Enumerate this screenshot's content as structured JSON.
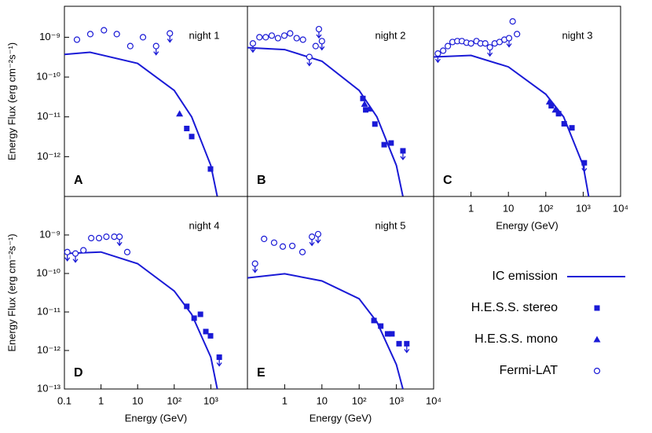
{
  "chart_data": [
    {
      "type": "scatter",
      "title": "night 1",
      "label": "A",
      "ylabel": "Energy Flux (erg cm⁻²s⁻¹)",
      "xlog": true,
      "ylog": true,
      "xlim": [
        0.1,
        10000
      ],
      "ylim": [
        1e-13,
        6e-09
      ],
      "yticks": [
        {
          "value": 1e-09,
          "label": "10⁻⁹"
        },
        {
          "value": 1e-10,
          "label": "10⁻¹⁰"
        },
        {
          "value": 1e-11,
          "label": "10⁻¹¹"
        },
        {
          "value": 1e-12,
          "label": "10⁻¹²"
        }
      ],
      "series": [
        {
          "name": "IC emission",
          "marker": "line",
          "color": "#1a1ad6",
          "x": [
            0.1,
            0.5,
            10,
            100,
            300,
            1000,
            1500
          ],
          "values": [
            3.7e-10,
            4.2e-10,
            2.2e-10,
            4.6e-11,
            1e-11,
            6e-13,
            1e-13
          ]
        },
        {
          "name": "H.E.S.S. stereo",
          "marker": "square",
          "color": "#1a1ad6",
          "x": [
            220,
            300,
            980
          ],
          "values": [
            5.1e-12,
            3.2e-12,
            4.9e-13
          ],
          "upper_limit": [
            false,
            false,
            false
          ]
        },
        {
          "name": "H.E.S.S. mono",
          "marker": "triangle",
          "color": "#1a1ad6",
          "x": [
            140
          ],
          "values": [
            1.2e-11
          ],
          "upper_limit": [
            false
          ]
        },
        {
          "name": "Fermi-LAT",
          "marker": "circle",
          "color": "#1a1ad6",
          "x": [
            0.22,
            0.51,
            1.2,
            2.7,
            6.3,
            14,
            32,
            76
          ],
          "values": [
            8.7e-10,
            1.2e-09,
            1.5e-09,
            1.2e-09,
            6e-10,
            1e-09,
            6e-10,
            1.25e-09
          ],
          "upper_limit": [
            false,
            false,
            false,
            false,
            false,
            false,
            true,
            true
          ]
        }
      ]
    },
    {
      "type": "scatter",
      "title": "night 2",
      "label": "B",
      "xlog": true,
      "ylog": true,
      "xlim": [
        0.1,
        10000
      ],
      "ylim": [
        1e-13,
        6e-09
      ],
      "series": [
        {
          "name": "IC emission",
          "marker": "line",
          "color": "#1a1ad6",
          "x": [
            0.1,
            1,
            10,
            100,
            300,
            1000,
            1500
          ],
          "values": [
            5.5e-10,
            4.9e-10,
            2.5e-10,
            4.6e-11,
            1e-11,
            6e-13,
            1e-13
          ]
        },
        {
          "name": "H.E.S.S. stereo",
          "marker": "square",
          "color": "#1a1ad6",
          "x": [
            126,
            150,
            265,
            470,
            720,
            1500
          ],
          "values": [
            2.9e-11,
            1.5e-11,
            6.6e-12,
            2e-12,
            2.2e-12,
            1.4e-12
          ],
          "upper_limit": [
            false,
            false,
            false,
            false,
            false,
            true
          ]
        },
        {
          "name": "H.E.S.S. mono",
          "marker": "triangle",
          "color": "#1a1ad6",
          "x": [
            140,
            190
          ],
          "values": [
            2.1e-11,
            1.6e-11
          ],
          "upper_limit": [
            false,
            false
          ]
        },
        {
          "name": "Fermi-LAT",
          "marker": "circle",
          "color": "#1a1ad6",
          "x": [
            0.14,
            0.21,
            0.31,
            0.45,
            0.66,
            0.98,
            1.4,
            2.1,
            3.1,
            4.6,
            6.8,
            8.3,
            10
          ],
          "values": [
            7e-10,
            1e-09,
            1e-09,
            1.1e-09,
            9.5e-10,
            1.1e-09,
            1.25e-09,
            9.5e-10,
            8.7e-10,
            3.2e-10,
            6e-10,
            1.6e-09,
            8e-10
          ],
          "upper_limit": [
            true,
            false,
            false,
            false,
            false,
            false,
            false,
            false,
            false,
            true,
            false,
            true,
            true
          ]
        }
      ]
    },
    {
      "type": "scatter",
      "title": "night 3",
      "label": "C",
      "xlabel": "Energy (GeV)",
      "xlog": true,
      "ylog": true,
      "xlim": [
        0.1,
        10000
      ],
      "ylim": [
        1e-13,
        6e-09
      ],
      "xticks": [
        1,
        10,
        {
          "value": 100,
          "label": "10²"
        },
        {
          "value": 1000,
          "label": "10³"
        },
        {
          "value": 10000,
          "label": "10⁴"
        }
      ],
      "series": [
        {
          "name": "IC emission",
          "marker": "line",
          "color": "#1a1ad6",
          "x": [
            0.1,
            1,
            10,
            100,
            300,
            1000,
            1400
          ],
          "values": [
            3.2e-10,
            3.5e-10,
            1.8e-10,
            3.7e-11,
            1e-11,
            6e-13,
            1e-13
          ]
        },
        {
          "name": "H.E.S.S. stereo",
          "marker": "square",
          "color": "#1a1ad6",
          "x": [
            140,
            220,
            310,
            500,
            1070
          ],
          "values": [
            1.9e-11,
            1.2e-11,
            6.7e-12,
            5.3e-12,
            7e-13
          ],
          "upper_limit": [
            false,
            false,
            false,
            false,
            true
          ]
        },
        {
          "name": "H.E.S.S. mono",
          "marker": "triangle",
          "color": "#1a1ad6",
          "x": [
            125,
            180
          ],
          "values": [
            2.4e-11,
            1.5e-11
          ],
          "upper_limit": [
            false,
            false
          ]
        },
        {
          "name": "Fermi-LAT",
          "marker": "circle",
          "color": "#1a1ad6",
          "x": [
            0.13,
            0.18,
            0.24,
            0.32,
            0.43,
            0.57,
            0.76,
            1.0,
            1.4,
            1.8,
            2.4,
            3.2,
            4.3,
            5.8,
            7.8,
            10.4,
            13,
            17
          ],
          "values": [
            3.9e-10,
            4.6e-10,
            6e-10,
            7.6e-10,
            8e-10,
            8e-10,
            7.3e-10,
            7e-10,
            8e-10,
            7e-10,
            7e-10,
            5.6e-10,
            7e-10,
            7.6e-10,
            8.7e-10,
            9.5e-10,
            2.5e-09,
            1.2e-09
          ],
          "upper_limit": [
            true,
            false,
            false,
            false,
            false,
            false,
            false,
            false,
            false,
            false,
            false,
            true,
            false,
            false,
            false,
            true,
            false,
            false
          ]
        }
      ]
    },
    {
      "type": "scatter",
      "title": "night 4",
      "label": "D",
      "ylabel": "Energy Flux (erg cm⁻²s⁻¹)",
      "xlabel": "Energy (GeV)",
      "xlog": true,
      "ylog": true,
      "xlim": [
        0.1,
        10000
      ],
      "ylim": [
        1e-13,
        1e-08
      ],
      "yticks": [
        {
          "value": 1e-09,
          "label": "10⁻⁹"
        },
        {
          "value": 1e-10,
          "label": "10⁻¹⁰"
        },
        {
          "value": 1e-11,
          "label": "10⁻¹¹"
        },
        {
          "value": 1e-12,
          "label": "10⁻¹²"
        },
        {
          "value": 1e-13,
          "label": "10⁻¹³"
        }
      ],
      "xticks": [
        0.1,
        1,
        10,
        {
          "value": 100,
          "label": "10²"
        },
        {
          "value": 1000,
          "label": "10³"
        }
      ],
      "series": [
        {
          "name": "IC emission",
          "marker": "line",
          "color": "#1a1ad6",
          "x": [
            0.1,
            1,
            10,
            100,
            300,
            1000,
            1500
          ],
          "values": [
            3.3e-10,
            3.6e-10,
            1.8e-10,
            3.5e-11,
            8.7e-12,
            6.7e-13,
            1e-13
          ]
        },
        {
          "name": "H.E.S.S. stereo",
          "marker": "square",
          "color": "#1a1ad6",
          "x": [
            220,
            350,
            520,
            730,
            980,
            1700
          ],
          "values": [
            1.4e-11,
            6.9e-12,
            8.7e-12,
            3.1e-12,
            2.4e-12,
            6.7e-13
          ],
          "upper_limit": [
            false,
            false,
            false,
            false,
            false,
            true
          ]
        },
        {
          "name": "Fermi-LAT",
          "marker": "circle",
          "color": "#1a1ad6",
          "x": [
            0.12,
            0.2,
            0.33,
            0.54,
            0.88,
            1.4,
            2.3,
            3.2,
            5.2
          ],
          "values": [
            3.6e-10,
            3.3e-10,
            4e-10,
            8.3e-10,
            8.3e-10,
            9e-10,
            9e-10,
            9e-10,
            3.6e-10
          ],
          "upper_limit": [
            true,
            true,
            false,
            false,
            false,
            false,
            false,
            true,
            false
          ]
        }
      ]
    },
    {
      "type": "scatter",
      "title": "night 5",
      "label": "E",
      "xlabel": "Energy (GeV)",
      "xlog": true,
      "ylog": true,
      "xlim": [
        0.1,
        10000
      ],
      "ylim": [
        1e-13,
        1e-08
      ],
      "xticks": [
        1,
        10,
        {
          "value": 100,
          "label": "10²"
        },
        {
          "value": 1000,
          "label": "10³"
        },
        {
          "value": 10000,
          "label": "10⁴"
        }
      ],
      "series": [
        {
          "name": "IC emission",
          "marker": "line",
          "color": "#1a1ad6",
          "x": [
            0.1,
            1,
            10,
            100,
            300,
            1000,
            1500
          ],
          "values": [
            7.7e-11,
            9.8e-11,
            6.4e-11,
            2.2e-11,
            5.5e-12,
            4.3e-13,
            1e-13
          ]
        },
        {
          "name": "H.E.S.S. stereo",
          "marker": "square",
          "color": "#1a1ad6",
          "x": [
            250,
            380,
            580,
            760,
            1180,
            1900
          ],
          "values": [
            6e-12,
            4.3e-12,
            2.7e-12,
            2.7e-12,
            1.5e-12,
            1.5e-12
          ],
          "upper_limit": [
            false,
            false,
            false,
            false,
            false,
            true
          ]
        },
        {
          "name": "Fermi-LAT",
          "marker": "circle",
          "color": "#1a1ad6",
          "x": [
            0.16,
            0.28,
            0.52,
            0.89,
            1.6,
            3.0,
            5.4,
            7.9
          ],
          "values": [
            1.8e-10,
            7.9e-10,
            6.3e-10,
            5e-10,
            5.2e-10,
            3.6e-10,
            9e-10,
            1.05e-09
          ],
          "upper_limit": [
            true,
            false,
            false,
            false,
            false,
            false,
            true,
            true
          ]
        }
      ]
    }
  ]
}
